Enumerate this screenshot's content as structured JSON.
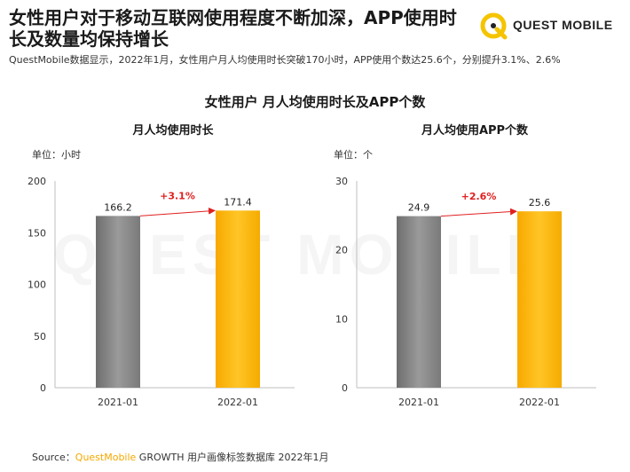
{
  "header": {
    "title": "女性用户对于移动互联网使用程度不断加深，APP使用时长及数量均保持增长",
    "subtitle": "QuestMobile数据显示，2022年1月，女性用户月人均使用时长突破170小时，APP使用个数达25.6个，分别提升3.1%、2.6%"
  },
  "logo": {
    "text": "QUEST MOBILE",
    "icon": "quest-mobile-q-logo-icon",
    "color": "#f5c400"
  },
  "main_title": "女性用户 月人均使用时长及APP个数",
  "watermark": "QUEST MOBILE",
  "source": {
    "prefix": "Source：",
    "brand": "QuestMobile",
    "rest": " GROWTH 用户画像标签数据库 2022年1月"
  },
  "colors": {
    "bar_2021": "#8c8c8c",
    "bar_2022": "#fdb913",
    "growth": "#e02020",
    "brand": "#f5a800"
  },
  "chart_data": [
    {
      "type": "bar",
      "title": "月人均使用时长",
      "unit_label": "单位：小时",
      "categories": [
        "2021-01",
        "2022-01"
      ],
      "values": [
        166.2,
        171.4
      ],
      "value_labels": [
        "166.2",
        "171.4"
      ],
      "ylim": [
        0,
        200
      ],
      "yticks": [
        "0",
        "50",
        "100",
        "150",
        "200"
      ],
      "growth_label": "+3.1%",
      "grid": false
    },
    {
      "type": "bar",
      "title": "月人均使用APP个数",
      "unit_label": "单位：个",
      "categories": [
        "2021-01",
        "2022-01"
      ],
      "values": [
        24.9,
        25.6
      ],
      "value_labels": [
        "24.9",
        "25.6"
      ],
      "ylim": [
        0,
        30
      ],
      "yticks": [
        "0",
        "10",
        "20",
        "30"
      ],
      "growth_label": "+2.6%",
      "grid": false
    }
  ]
}
